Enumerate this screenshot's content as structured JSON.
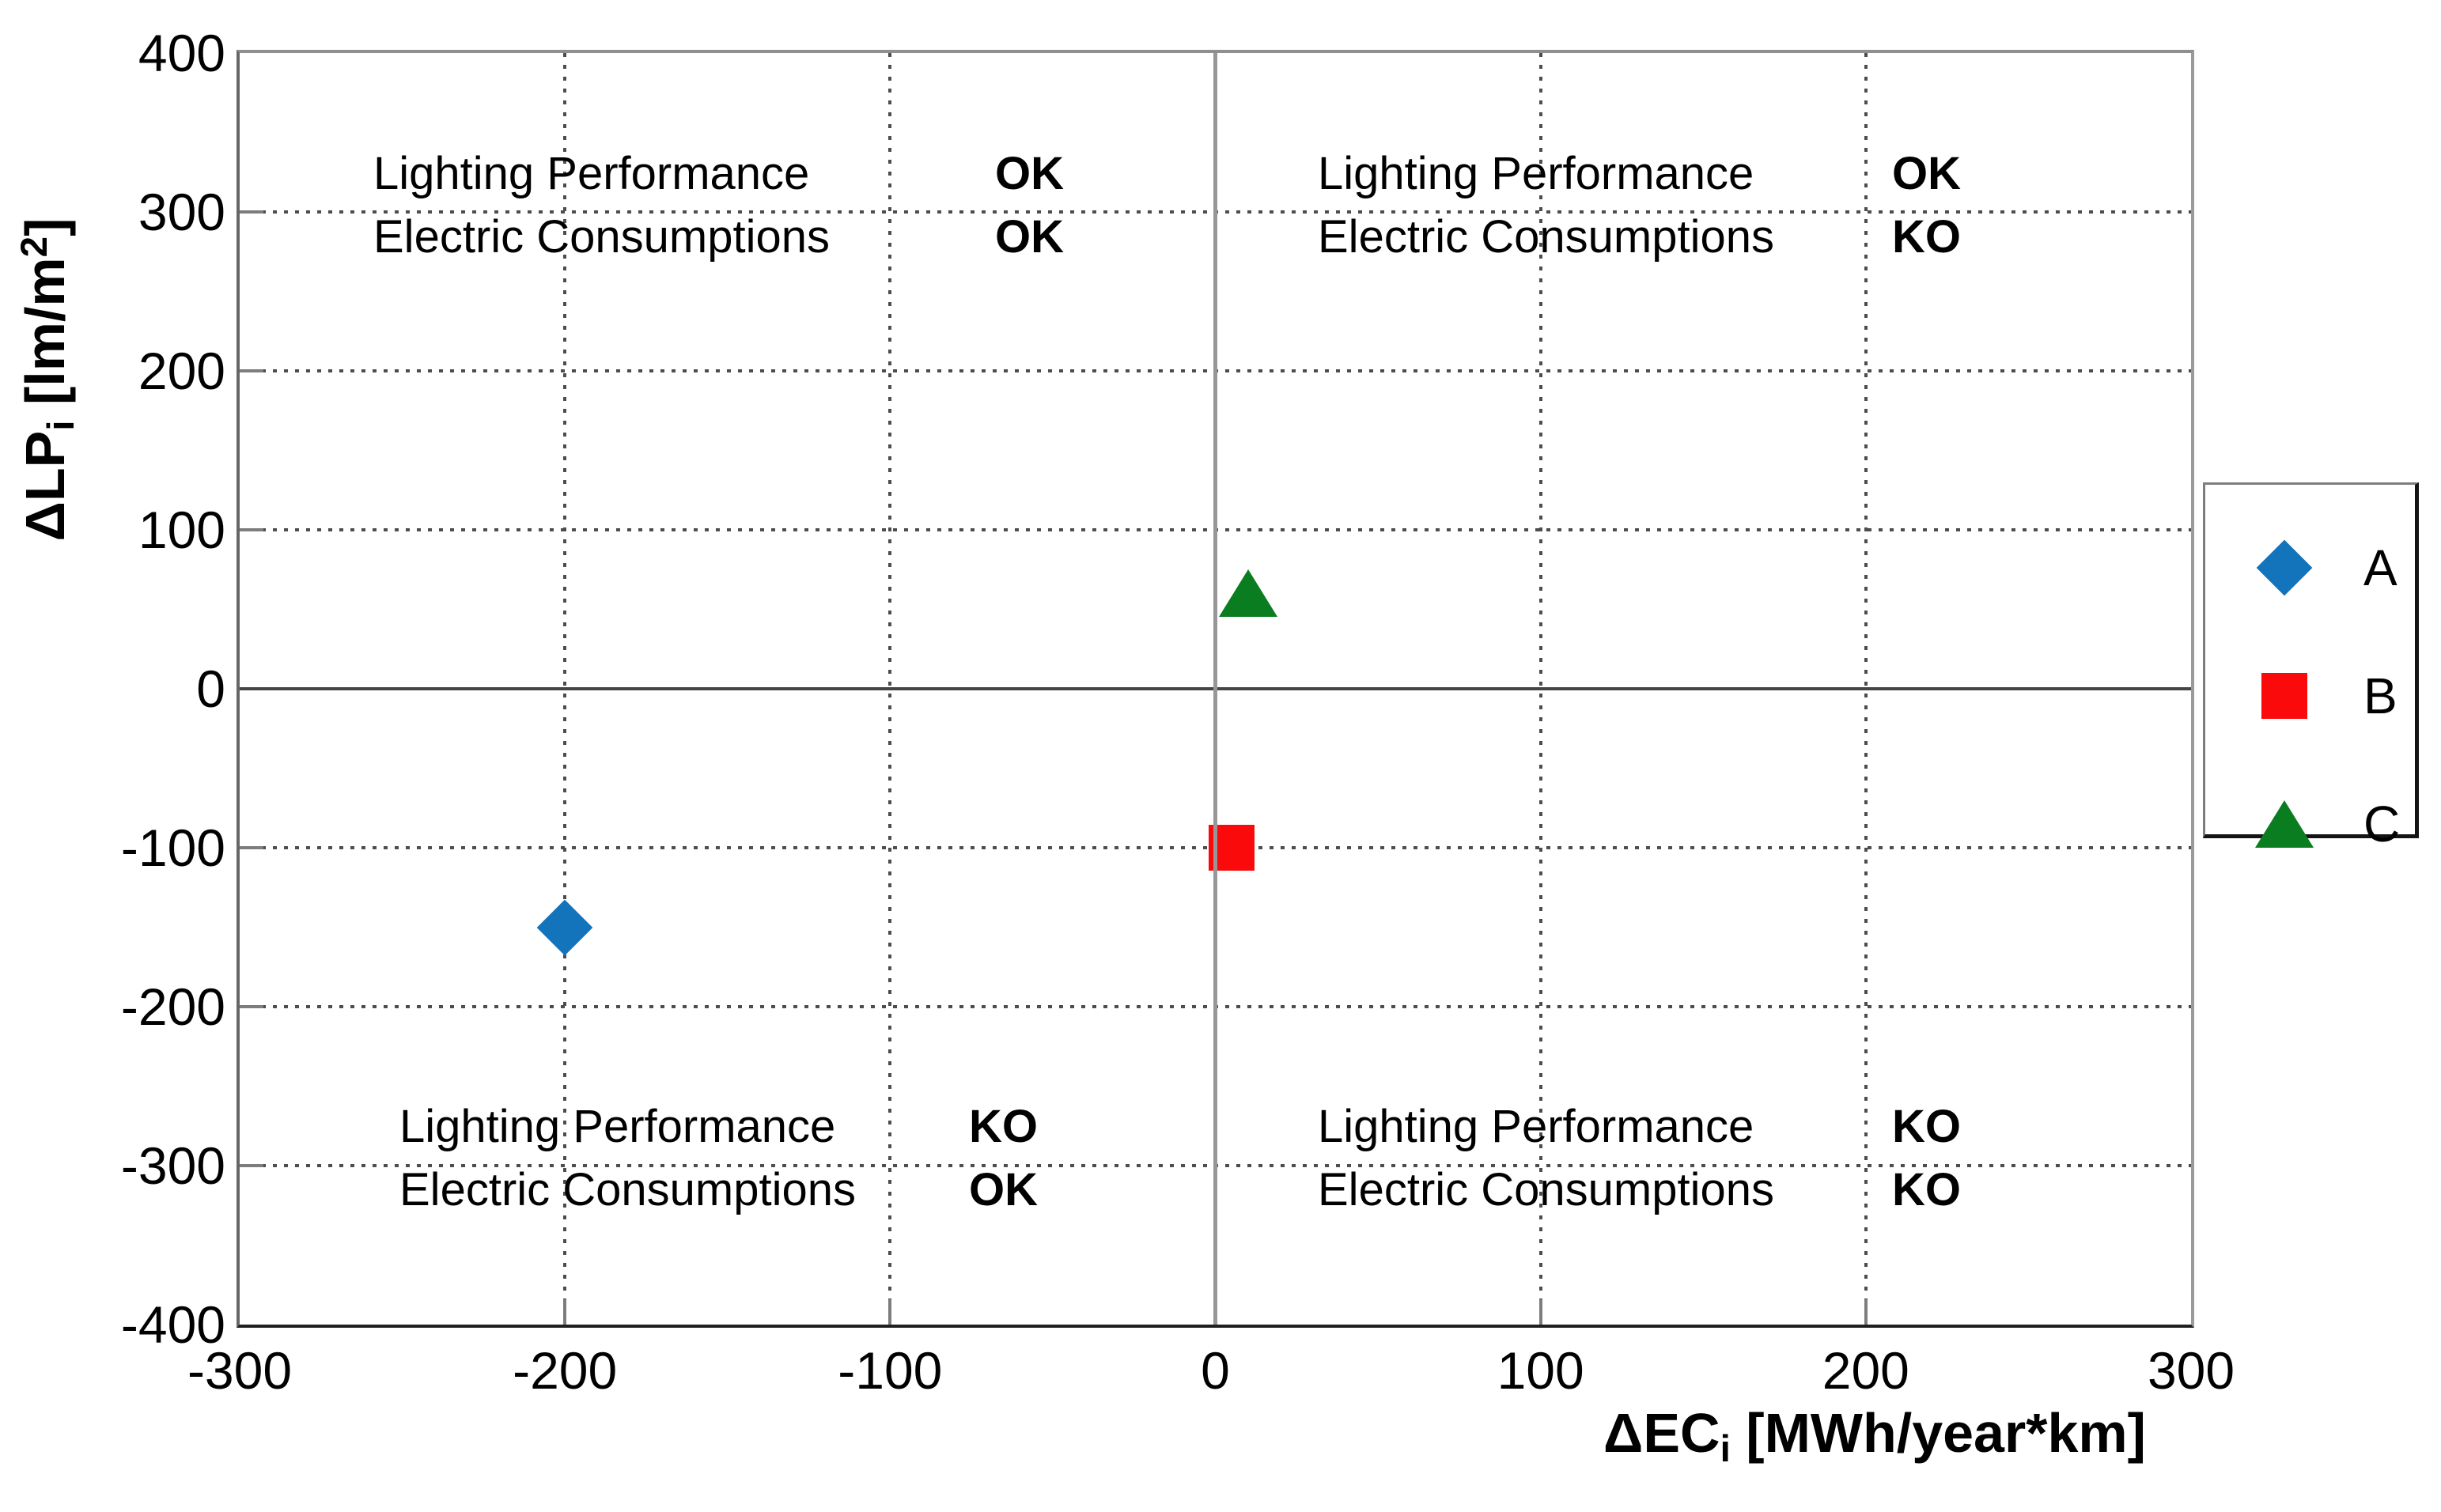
{
  "chart_data": {
    "type": "scatter",
    "title": "",
    "xlabel": {
      "base": "ΔEC",
      "sub": "i",
      "unit": " [MWh/year*km]"
    },
    "ylabel": {
      "base": "ΔLP",
      "sub": "i",
      "unit_pre": " [lm/m",
      "sup": "2",
      "unit_post": "]"
    },
    "xlim": [
      -300,
      300
    ],
    "ylim": [
      -400,
      400
    ],
    "xticks": [
      -300,
      -200,
      -100,
      0,
      100,
      200,
      300
    ],
    "yticks": [
      400,
      300,
      200,
      100,
      0,
      -100,
      -200,
      -300,
      -400
    ],
    "grid": "dotted gridlines at each tick; solid gray line at x=0; solid dark line at y=0",
    "legend_position": "outside-right",
    "series": [
      {
        "name": "A",
        "marker": "diamond",
        "color": "#1373bb",
        "points": [
          {
            "x": -200,
            "y": -150
          }
        ]
      },
      {
        "name": "B",
        "marker": "square",
        "color": "#fa0a0a",
        "points": [
          {
            "x": 5,
            "y": -100
          }
        ]
      },
      {
        "name": "C",
        "marker": "triangle",
        "color": "#0a7d20",
        "points": [
          {
            "x": 10,
            "y": 60
          }
        ]
      }
    ],
    "annotations": [
      {
        "quadrant": "top-left",
        "lines": [
          {
            "label": "Lighting Performance",
            "value": "OK"
          },
          {
            "label": "Electric Consumptions",
            "value": "OK"
          }
        ]
      },
      {
        "quadrant": "top-right",
        "lines": [
          {
            "label": "Lighting Performance",
            "value": "OK"
          },
          {
            "label": "Electric Consumptions",
            "value": "KO"
          }
        ]
      },
      {
        "quadrant": "bottom-left",
        "lines": [
          {
            "label": "Lighting Performance",
            "value": "KO"
          },
          {
            "label": "Electric Consumptions",
            "value": "OK"
          }
        ]
      },
      {
        "quadrant": "bottom-right",
        "lines": [
          {
            "label": "Lighting Performance",
            "value": "KO"
          },
          {
            "label": "Electric Consumptions",
            "value": "KO"
          }
        ]
      }
    ]
  }
}
